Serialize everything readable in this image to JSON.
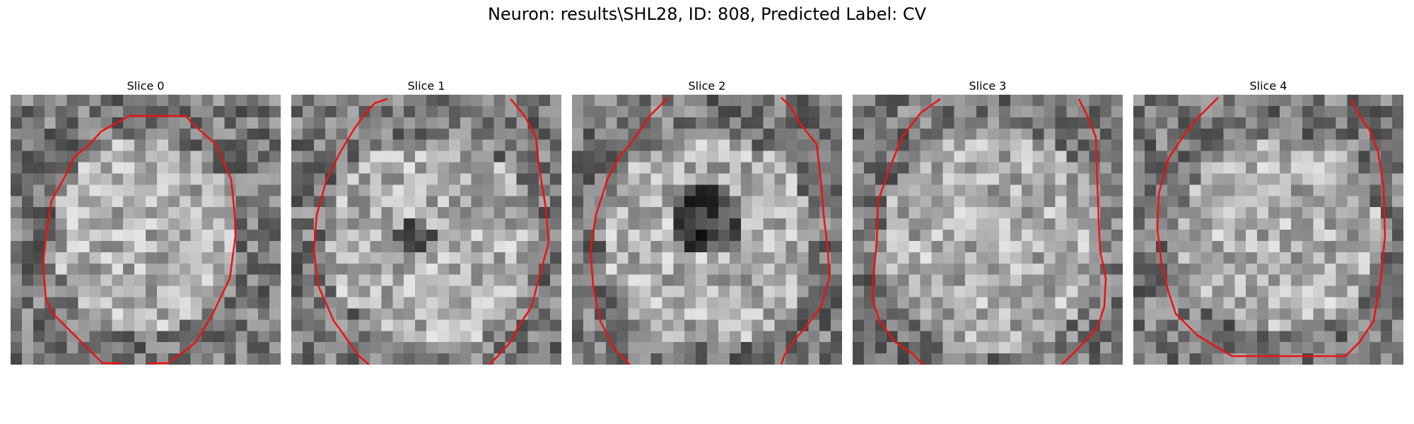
{
  "figure": {
    "title": "Neuron: results\\SHL28, ID: 808, Predicted Label: CV"
  },
  "panels": [
    {
      "title": "Slice 0"
    },
    {
      "title": "Slice 1"
    },
    {
      "title": "Slice 2"
    },
    {
      "title": "Slice 3"
    },
    {
      "title": "Slice 4"
    }
  ],
  "colors": {
    "contour": "#ee1111",
    "background": "#ffffff"
  }
}
